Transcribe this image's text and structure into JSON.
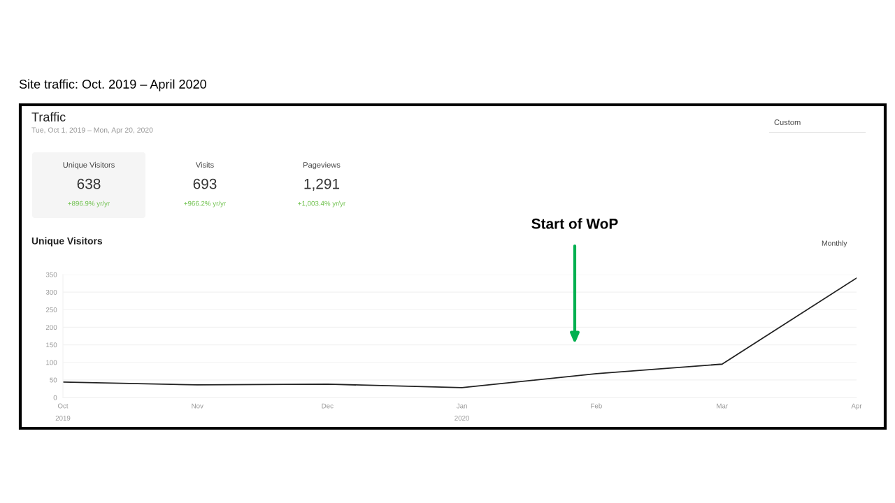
{
  "chart_data": [
    {
      "type": "other",
      "title": "Traffic",
      "subtitle": "Tue, Oct 1, 2019 – Mon, Apr 20, 2020",
      "annotations": [
        "Site traffic: Oct. 2019 – April 2020",
        "Custom",
        "Unique Visitors",
        "638",
        "+896.9% yr/yr",
        "Visits",
        "693",
        "+966.2% yr/yr",
        "Pageviews",
        "1,291",
        "+1,003.4% yr/yr"
      ]
    },
    {
      "type": "line",
      "title": "Unique Visitors",
      "x": [
        "2019-10",
        "2019-11",
        "2019-12",
        "2020-01",
        "2020-02",
        "2020-03",
        "2020-04"
      ],
      "series": [
        {
          "color": "#222222",
          "values": [
            44,
            36,
            38,
            28,
            68,
            95,
            340
          ]
        }
      ],
      "xlim": [
        "2019-10",
        "2020-04"
      ],
      "xticks": [
        {
          "value": "2019-10",
          "label": "Oct\n2019"
        },
        {
          "value": "2019-11",
          "label": "Nov"
        },
        {
          "value": "2019-12",
          "label": "Dec"
        },
        {
          "value": "2020-01",
          "label": "Jan\n2020"
        },
        {
          "value": "2020-02",
          "label": "Feb"
        },
        {
          "value": "2020-03",
          "label": "Mar"
        },
        {
          "value": "2020-04",
          "label": "Apr"
        }
      ],
      "ylim": [
        0,
        350
      ],
      "yticks": [
        0,
        50,
        100,
        150,
        200,
        250,
        300,
        350
      ],
      "grid": "y",
      "marker": "none",
      "line_style": "solid",
      "annotations": [
        "Monthly",
        "Start of WoP"
      ]
    }
  ]
}
